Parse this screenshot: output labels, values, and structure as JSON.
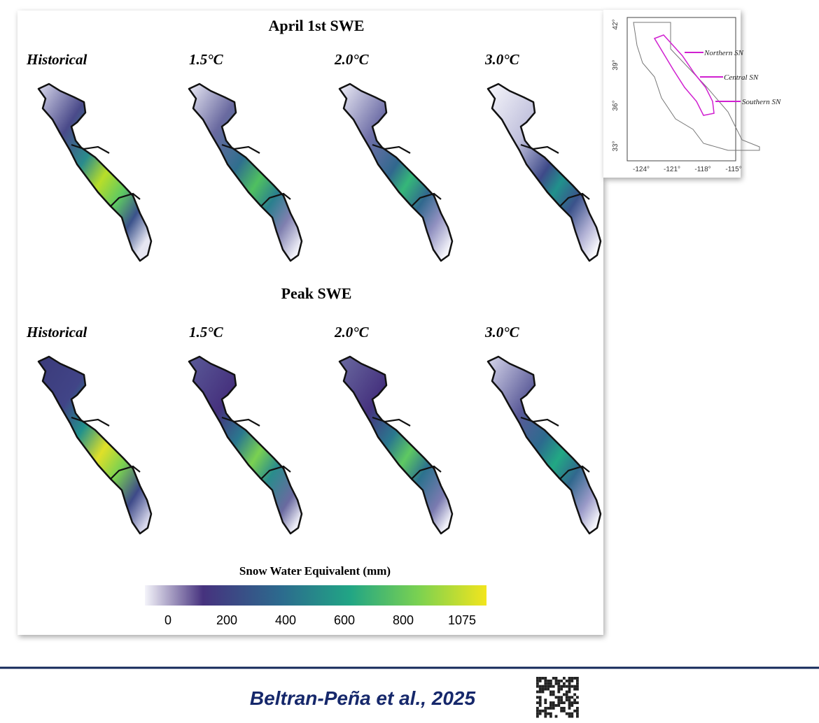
{
  "figure": {
    "sections": [
      {
        "title": "April 1st SWE",
        "columns": [
          "Historical",
          "1.5°C",
          "2.0°C",
          "3.0°C"
        ]
      },
      {
        "title": "Peak SWE",
        "columns": [
          "Historical",
          "1.5°C",
          "2.0°C",
          "3.0°C"
        ]
      }
    ],
    "colorbar": {
      "title": "Snow Water Equivalent (mm)",
      "ticks": [
        0,
        200,
        400,
        600,
        800,
        1075
      ]
    }
  },
  "inset": {
    "lat_ticks": [
      "42°",
      "39°",
      "36°",
      "33°"
    ],
    "lon_ticks": [
      "-124°",
      "-121°",
      "-118°",
      "-115°"
    ],
    "regions": [
      "Northern SN",
      "Central SN",
      "Southern SN"
    ]
  },
  "footer": {
    "citation": "Beltran-Peña et al., 2025"
  }
}
